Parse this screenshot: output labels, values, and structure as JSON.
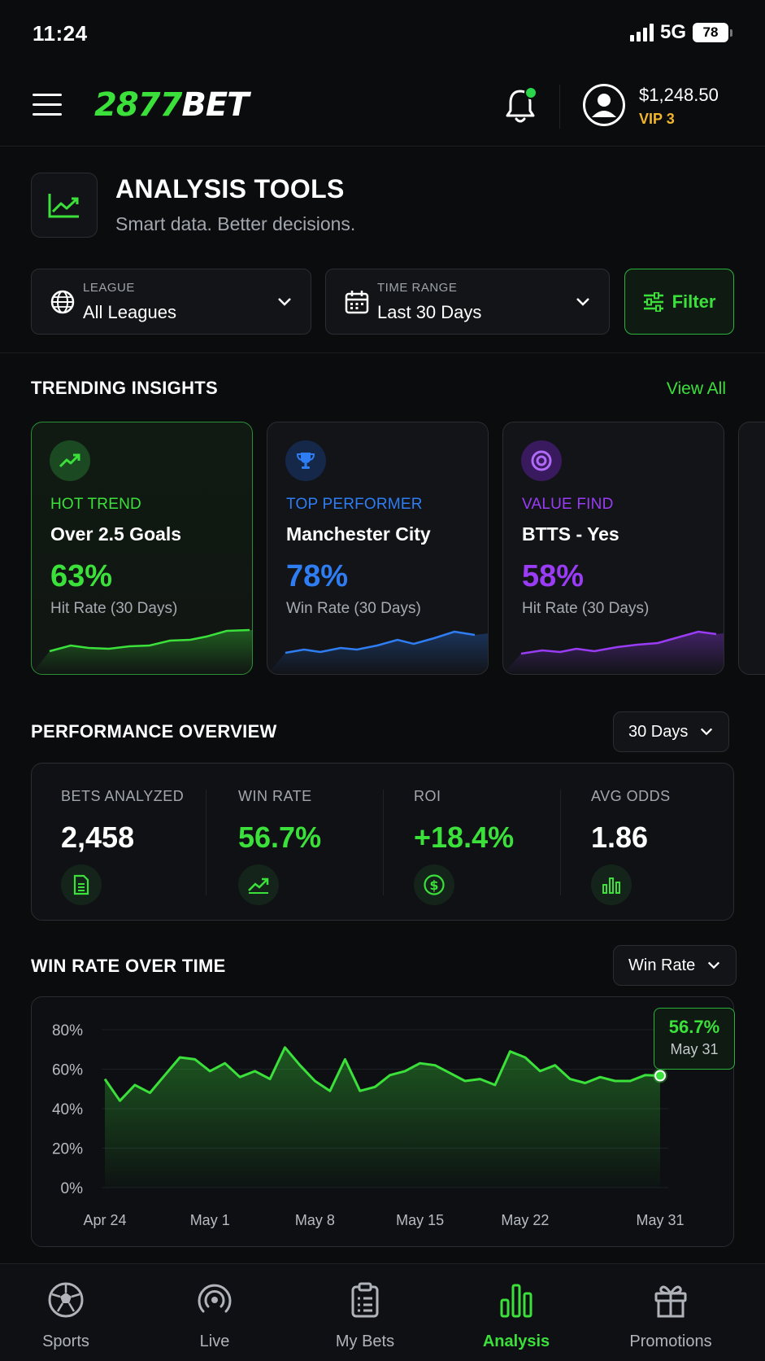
{
  "status_bar": {
    "time": "11:24",
    "network": "5G",
    "battery": "78"
  },
  "header": {
    "logo_num": "2877",
    "logo_text": "BET",
    "balance": "$1,248.50",
    "vip": "VIP 3"
  },
  "page": {
    "title": "ANALYSIS TOOLS",
    "subtitle": "Smart data. Better decisions."
  },
  "filters": {
    "league": {
      "label": "LEAGUE",
      "value": "All Leagues"
    },
    "time_range": {
      "label": "TIME RANGE",
      "value": "Last 30 Days"
    },
    "filter_label": "Filter"
  },
  "trending": {
    "title": "TRENDING INSIGHTS",
    "view_all": "View All",
    "cards": [
      {
        "tag": "HOT TREND",
        "name": "Over 2.5 Goals",
        "pct": "63%",
        "sub": "Hit Rate (30 Days)",
        "color": "#3be03b"
      },
      {
        "tag": "TOP PERFORMER",
        "name": "Manchester City",
        "pct": "78%",
        "sub": "Win Rate (30 Days)",
        "color": "#2f7df3"
      },
      {
        "tag": "VALUE FIND",
        "name": "BTTS - Yes",
        "pct": "58%",
        "sub": "Hit Rate (30 Days)",
        "color": "#9a3cf5"
      }
    ]
  },
  "performance": {
    "title": "PERFORMANCE OVERVIEW",
    "range": "30 Days",
    "stats": [
      {
        "label": "BETS ANALYZED",
        "value": "2,458"
      },
      {
        "label": "WIN RATE",
        "value": "56.7%"
      },
      {
        "label": "ROI",
        "value": "+18.4%"
      },
      {
        "label": "AVG ODDS",
        "value": "1.86"
      }
    ]
  },
  "win_chart": {
    "title": "WIN RATE OVER TIME",
    "metric": "Win Rate",
    "tooltip_value": "56.7%",
    "tooltip_date": "May 31"
  },
  "chart_data": {
    "type": "area",
    "title": "WIN RATE OVER TIME",
    "xlabel": "",
    "ylabel": "",
    "ylim": [
      0,
      80
    ],
    "y_ticks": [
      "0%",
      "20%",
      "40%",
      "60%",
      "80%"
    ],
    "x_ticks": [
      "Apr 24",
      "May 1",
      "May 8",
      "May 15",
      "May 22",
      "May 31"
    ],
    "x": [
      "Apr 24",
      "Apr 25",
      "Apr 26",
      "Apr 27",
      "Apr 28",
      "Apr 29",
      "Apr 30",
      "May 1",
      "May 2",
      "May 3",
      "May 4",
      "May 5",
      "May 6",
      "May 7",
      "May 8",
      "May 9",
      "May 10",
      "May 11",
      "May 12",
      "May 13",
      "May 14",
      "May 15",
      "May 16",
      "May 17",
      "May 18",
      "May 19",
      "May 20",
      "May 21",
      "May 22",
      "May 23",
      "May 24",
      "May 25",
      "May 26",
      "May 27",
      "May 28",
      "May 29",
      "May 30",
      "May 31"
    ],
    "series": [
      {
        "values": [
          55,
          44,
          52,
          48,
          57,
          66,
          65,
          59,
          63,
          56,
          59,
          55,
          71,
          62,
          54,
          49,
          65,
          49,
          51,
          57,
          59,
          63,
          62,
          58,
          54,
          55,
          52,
          69,
          66,
          59,
          62,
          55,
          53,
          56,
          54,
          54,
          57,
          56.7
        ]
      }
    ],
    "grid": true,
    "color": "#3be03b"
  },
  "bottom_nav": [
    {
      "label": "Sports",
      "icon": "soccer-ball-icon"
    },
    {
      "label": "Live",
      "icon": "broadcast-icon"
    },
    {
      "label": "My Bets",
      "icon": "clipboard-icon"
    },
    {
      "label": "Analysis",
      "icon": "bar-chart-icon"
    },
    {
      "label": "Promotions",
      "icon": "gift-icon"
    }
  ]
}
